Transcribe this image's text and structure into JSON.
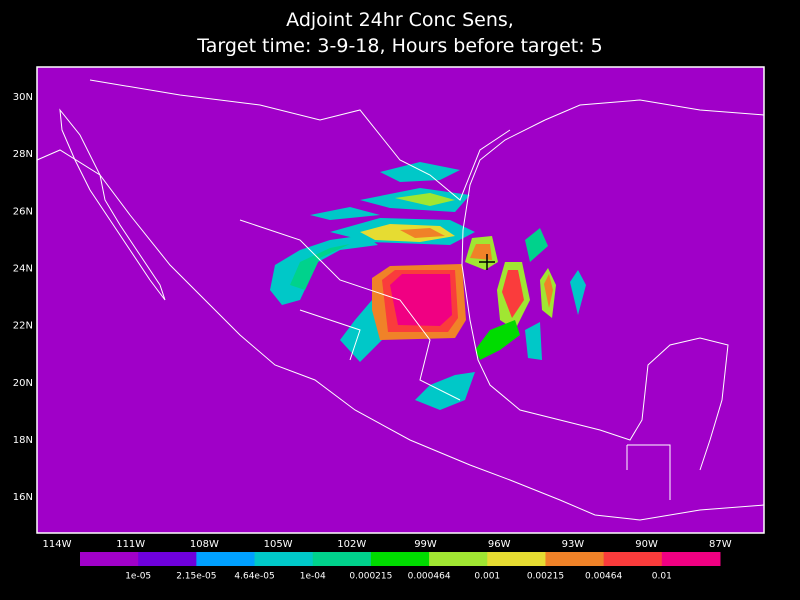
{
  "title": [
    "Adjoint 24hr Conc Sens,",
    "Target time: 3-9-18, Hours before target: 5"
  ],
  "map": {
    "background": "#a000c8",
    "frame": "#ffffff",
    "lat_labels": [
      "30N",
      "28N",
      "26N",
      "24N",
      "22N",
      "20N",
      "18N",
      "16N"
    ],
    "lon_labels": [
      "114W",
      "111W",
      "108W",
      "105W",
      "102W",
      "99W",
      "96W",
      "93W",
      "90W",
      "87W"
    ]
  },
  "colorbar": {
    "colors": [
      "#a000c8",
      "#6e00dc",
      "#00a0ff",
      "#00c8c8",
      "#00d28c",
      "#00dc00",
      "#a0e632",
      "#e6dc32",
      "#f08228",
      "#fa3c3c",
      "#f00082"
    ],
    "labels": [
      "1e-05",
      "2.15e-05",
      "4.64e-05",
      "1e-04",
      "0.000215",
      "0.000464",
      "0.001",
      "0.00215",
      "0.00464",
      "0.01"
    ]
  }
}
